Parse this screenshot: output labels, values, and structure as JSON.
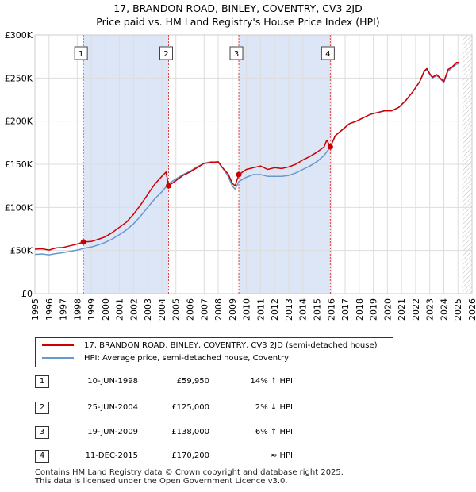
{
  "chart_data": {
    "type": "line",
    "title_line1": "17, BRANDON ROAD, BINLEY, COVENTRY, CV3 2JD",
    "title_line2": "Price paid vs. HM Land Registry's House Price Index (HPI)",
    "x_ticks": [
      "1995",
      "1996",
      "1997",
      "1998",
      "1999",
      "2000",
      "2001",
      "2002",
      "2003",
      "2004",
      "2005",
      "2006",
      "2007",
      "2008",
      "2009",
      "2010",
      "2011",
      "2012",
      "2013",
      "2014",
      "2015",
      "2016",
      "2017",
      "2018",
      "2019",
      "2020",
      "2021",
      "2022",
      "2023",
      "2024",
      "2025",
      "2026"
    ],
    "y_ticks": [
      {
        "value": 0,
        "label": "£0"
      },
      {
        "value": 50000,
        "label": "£50K"
      },
      {
        "value": 100000,
        "label": "£100K"
      },
      {
        "value": 150000,
        "label": "£150K"
      },
      {
        "value": 200000,
        "label": "£200K"
      },
      {
        "value": 250000,
        "label": "£250K"
      },
      {
        "value": 300000,
        "label": "£300K"
      }
    ],
    "xlim": [
      1995,
      2026
    ],
    "ylim": [
      0,
      300000
    ],
    "data_end": 2025.3,
    "shaded_ranges": [
      [
        1998.44,
        2004.48
      ],
      [
        2009.46,
        2015.95
      ]
    ],
    "series": [
      {
        "name": "17, BRANDON ROAD, BINLEY, COVENTRY, CV3 2JD (semi-detached house)",
        "color": "#cc0000",
        "points": [
          [
            1995.0,
            51500
          ],
          [
            1995.5,
            52000
          ],
          [
            1996.0,
            50500
          ],
          [
            1996.5,
            53000
          ],
          [
            1997.0,
            53500
          ],
          [
            1997.5,
            55500
          ],
          [
            1998.0,
            57500
          ],
          [
            1998.44,
            59950
          ],
          [
            1999.0,
            60500
          ],
          [
            1999.5,
            63000
          ],
          [
            2000.0,
            66000
          ],
          [
            2000.5,
            71000
          ],
          [
            2001.0,
            77000
          ],
          [
            2001.5,
            83000
          ],
          [
            2002.0,
            92000
          ],
          [
            2002.5,
            103000
          ],
          [
            2003.0,
            115000
          ],
          [
            2003.5,
            127000
          ],
          [
            2004.0,
            136000
          ],
          [
            2004.3,
            141000
          ],
          [
            2004.48,
            125000
          ],
          [
            2005.0,
            131000
          ],
          [
            2005.5,
            137000
          ],
          [
            2006.0,
            141000
          ],
          [
            2006.5,
            146000
          ],
          [
            2007.0,
            151000
          ],
          [
            2007.5,
            152000
          ],
          [
            2008.0,
            153000
          ],
          [
            2008.3,
            146000
          ],
          [
            2008.7,
            139000
          ],
          [
            2009.0,
            128000
          ],
          [
            2009.2,
            125000
          ],
          [
            2009.46,
            138000
          ],
          [
            2010.0,
            144000
          ],
          [
            2010.5,
            146000
          ],
          [
            2011.0,
            148000
          ],
          [
            2011.5,
            144000
          ],
          [
            2012.0,
            146000
          ],
          [
            2012.5,
            145000
          ],
          [
            2013.0,
            147000
          ],
          [
            2013.5,
            150000
          ],
          [
            2014.0,
            155000
          ],
          [
            2014.5,
            159000
          ],
          [
            2015.0,
            164000
          ],
          [
            2015.5,
            170000
          ],
          [
            2015.7,
            178000
          ],
          [
            2015.95,
            170200
          ],
          [
            2016.3,
            183000
          ],
          [
            2016.8,
            190000
          ],
          [
            2017.3,
            197000
          ],
          [
            2017.8,
            200000
          ],
          [
            2018.3,
            204000
          ],
          [
            2018.8,
            208000
          ],
          [
            2019.3,
            210000
          ],
          [
            2019.8,
            212000
          ],
          [
            2020.3,
            212000
          ],
          [
            2020.8,
            216000
          ],
          [
            2021.3,
            224000
          ],
          [
            2021.8,
            234000
          ],
          [
            2022.3,
            246000
          ],
          [
            2022.6,
            258000
          ],
          [
            2022.8,
            261000
          ],
          [
            2023.0,
            255000
          ],
          [
            2023.2,
            251000
          ],
          [
            2023.5,
            254000
          ],
          [
            2023.8,
            249000
          ],
          [
            2024.0,
            246000
          ],
          [
            2024.3,
            260000
          ],
          [
            2024.6,
            263000
          ],
          [
            2024.9,
            268000
          ],
          [
            2025.1,
            268000
          ]
        ]
      },
      {
        "name": "HPI: Average price, semi-detached house, Coventry",
        "color": "#6699cc",
        "points": [
          [
            1995.0,
            45500
          ],
          [
            1995.5,
            46000
          ],
          [
            1996.0,
            45000
          ],
          [
            1996.5,
            46500
          ],
          [
            1997.0,
            47500
          ],
          [
            1997.5,
            49000
          ],
          [
            1998.0,
            50500
          ],
          [
            1998.5,
            52500
          ],
          [
            1999.0,
            54000
          ],
          [
            1999.5,
            56500
          ],
          [
            2000.0,
            59500
          ],
          [
            2000.5,
            63500
          ],
          [
            2001.0,
            68500
          ],
          [
            2001.5,
            74000
          ],
          [
            2002.0,
            81000
          ],
          [
            2002.5,
            90000
          ],
          [
            2003.0,
            100000
          ],
          [
            2003.5,
            110000
          ],
          [
            2004.0,
            118000
          ],
          [
            2004.48,
            127500
          ],
          [
            2005.0,
            133000
          ],
          [
            2005.5,
            138000
          ],
          [
            2006.0,
            142000
          ],
          [
            2006.5,
            147000
          ],
          [
            2007.0,
            151000
          ],
          [
            2007.5,
            153000
          ],
          [
            2008.0,
            152000
          ],
          [
            2008.3,
            146000
          ],
          [
            2008.7,
            136000
          ],
          [
            2009.0,
            125000
          ],
          [
            2009.2,
            121000
          ],
          [
            2009.46,
            130000
          ],
          [
            2010.0,
            135000
          ],
          [
            2010.5,
            138000
          ],
          [
            2011.0,
            138000
          ],
          [
            2011.5,
            136000
          ],
          [
            2012.0,
            136000
          ],
          [
            2012.5,
            136000
          ],
          [
            2013.0,
            137000
          ],
          [
            2013.5,
            140000
          ],
          [
            2014.0,
            144000
          ],
          [
            2014.5,
            148000
          ],
          [
            2015.0,
            153000
          ],
          [
            2015.5,
            160000
          ],
          [
            2015.95,
            170000
          ],
          [
            2016.3,
            183000
          ],
          [
            2016.8,
            190000
          ],
          [
            2017.3,
            197000
          ],
          [
            2017.8,
            200000
          ],
          [
            2018.3,
            204000
          ],
          [
            2018.8,
            208000
          ],
          [
            2019.3,
            210000
          ],
          [
            2019.8,
            212000
          ],
          [
            2020.3,
            212000
          ],
          [
            2020.8,
            216000
          ],
          [
            2021.3,
            224000
          ],
          [
            2021.8,
            234000
          ],
          [
            2022.3,
            246000
          ],
          [
            2022.6,
            257000
          ],
          [
            2022.8,
            260000
          ],
          [
            2023.0,
            254000
          ],
          [
            2023.2,
            250000
          ],
          [
            2023.5,
            253000
          ],
          [
            2023.8,
            248000
          ],
          [
            2024.0,
            245000
          ],
          [
            2024.3,
            258000
          ],
          [
            2024.6,
            262000
          ],
          [
            2024.9,
            266000
          ],
          [
            2025.1,
            267000
          ]
        ]
      }
    ],
    "sales": [
      {
        "num": "1",
        "year": 1998.44,
        "value": 59950
      },
      {
        "num": "2",
        "year": 2004.48,
        "value": 125000
      },
      {
        "num": "3",
        "year": 2009.46,
        "value": 138000
      },
      {
        "num": "4",
        "year": 2015.95,
        "value": 170200
      }
    ]
  },
  "legend": {
    "property_label": "17, BRANDON ROAD, BINLEY, COVENTRY, CV3 2JD (semi-detached house)",
    "hpi_label": "HPI: Average price, semi-detached house, Coventry"
  },
  "sales_table": [
    {
      "num": "1",
      "date": "10-JUN-1998",
      "price": "£59,950",
      "hpi": "14% ↑ HPI"
    },
    {
      "num": "2",
      "date": "25-JUN-2004",
      "price": "£125,000",
      "hpi": "2% ↓ HPI"
    },
    {
      "num": "3",
      "date": "19-JUN-2009",
      "price": "£138,000",
      "hpi": "6% ↑ HPI"
    },
    {
      "num": "4",
      "date": "11-DEC-2015",
      "price": "£170,200",
      "hpi": "≈ HPI"
    }
  ],
  "footer": {
    "line1": "Contains HM Land Registry data © Crown copyright and database right 2025.",
    "line2": "This data is licensed under the Open Government Licence v3.0."
  },
  "colors": {
    "property_line": "#cc0000",
    "hpi_line": "#6699cc",
    "shade": "#dde6f7",
    "grid": "#dddddd"
  }
}
